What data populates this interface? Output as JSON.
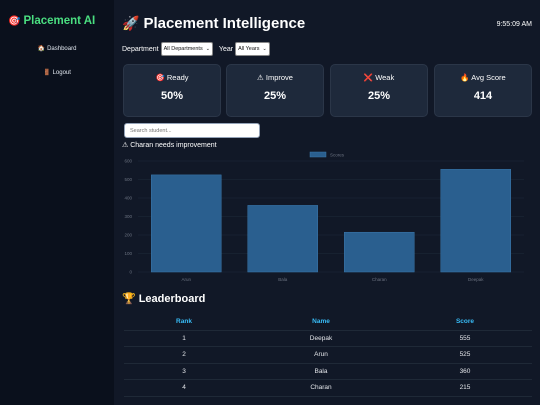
{
  "sidebar": {
    "brand_icon": "🎯",
    "brand": "Placement AI",
    "items": [
      {
        "icon": "🏠",
        "label": "Dashboard"
      },
      {
        "icon": "🚪",
        "label": "Logout"
      }
    ]
  },
  "header": {
    "title_icon": "🚀",
    "title": "Placement Intelligence",
    "clock": "9:55:09 AM"
  },
  "filters": {
    "department_label": "Department",
    "department_value": "All Departments",
    "year_label": "Year",
    "year_value": "All Years"
  },
  "cards": [
    {
      "icon": "🎯",
      "label": "Ready",
      "value": "50%"
    },
    {
      "icon": "⚠",
      "label": "Improve",
      "value": "25%"
    },
    {
      "icon": "❌",
      "label": "Weak",
      "value": "25%"
    },
    {
      "icon": "🔥",
      "label": "Avg Score",
      "value": "414"
    }
  ],
  "search": {
    "placeholder": "Search student..."
  },
  "alert": "⚠ Charan needs improvement",
  "chart_data": {
    "type": "bar",
    "categories": [
      "Arun",
      "Bala",
      "Charan",
      "Deepak"
    ],
    "series": [
      {
        "name": "Scores",
        "values": [
          525,
          360,
          215,
          555
        ]
      }
    ],
    "ylim": [
      0,
      600
    ],
    "yticks": [
      "0",
      "100",
      "200",
      "300",
      "400",
      "500",
      "600"
    ],
    "legend": "top-center",
    "grid": true,
    "colors": {
      "bar": "#2a5f8f",
      "bar_border": "#3b79ad"
    }
  },
  "leaderboard": {
    "title_icon": "🏆",
    "title": "Leaderboard",
    "columns": [
      "Rank",
      "Name",
      "Score"
    ],
    "rows": [
      [
        "1",
        "Deepak",
        "555"
      ],
      [
        "2",
        "Arun",
        "525"
      ],
      [
        "3",
        "Bala",
        "360"
      ],
      [
        "4",
        "Charan",
        "215"
      ]
    ]
  },
  "colors": {
    "accent_green": "#4ade80",
    "accent_blue": "#38bdf8",
    "background": "#111827",
    "sidebar": "#0a101c",
    "card": "#1e293b"
  }
}
